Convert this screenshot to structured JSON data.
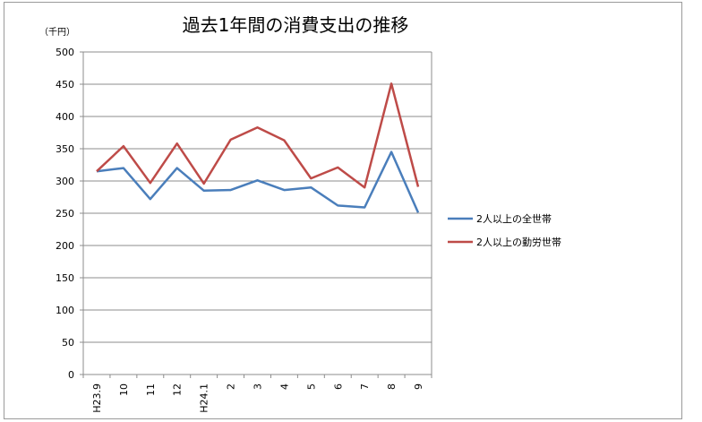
{
  "chart_data": {
    "type": "line",
    "title": "過去1年間の消費支出の推移",
    "ylabel": "（千円）",
    "xlabel": "",
    "categories": [
      "H23.9",
      "10",
      "11",
      "12",
      "H24.1",
      "2",
      "3",
      "4",
      "5",
      "6",
      "7",
      "8",
      "9"
    ],
    "ylim": [
      0,
      500
    ],
    "yticks": [
      0,
      50,
      100,
      150,
      200,
      250,
      300,
      350,
      400,
      450,
      500
    ],
    "grid": true,
    "legend_position": "right",
    "series": [
      {
        "name": "2人以上の全世帯",
        "color": "#4a7ebb",
        "values": [
          315,
          320,
          272,
          320,
          285,
          286,
          301,
          286,
          290,
          262,
          259,
          345,
          251
        ]
      },
      {
        "name": "2人以上の勤労世帯",
        "color": "#be4b48",
        "values": [
          315,
          354,
          297,
          358,
          296,
          364,
          383,
          363,
          304,
          321,
          290,
          451,
          291
        ]
      }
    ]
  }
}
